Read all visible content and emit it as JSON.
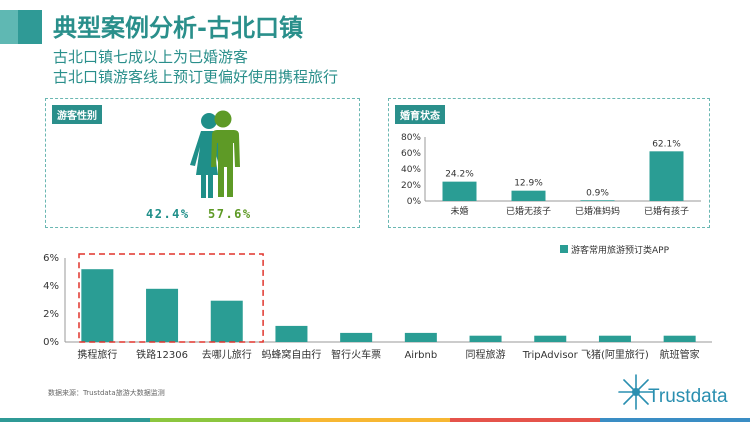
{
  "header": {
    "title": "典型案例分析-古北口镇",
    "subtitle_1": "古北口镇七成以上为已婚游客",
    "subtitle_2": "古北口镇游客线上预订更偏好使用携程旅行"
  },
  "gender_panel": {
    "tag": "游客性别",
    "female_pct": "42.4%",
    "male_pct": "57.6%",
    "female_color": "#1f8f89",
    "male_color": "#5e9a26"
  },
  "marriage_panel": {
    "tag": "婚育状态"
  },
  "source_note": "数据来源：Trustdata旅游大数据监测",
  "logo": {
    "text": "Trustdata"
  },
  "chart_data": [
    {
      "type": "bar",
      "title": "",
      "categories": [
        "未婚",
        "已婚无孩子",
        "已婚准妈妈",
        "已婚有孩子"
      ],
      "values": [
        24.2,
        12.9,
        0.9,
        62.1
      ],
      "data_labels": [
        "24.2%",
        "12.9%",
        "0.9%",
        "62.1%"
      ],
      "ylim": [
        0,
        80
      ],
      "yticks": [
        "0%",
        "20%",
        "40%",
        "60%",
        "80%"
      ],
      "color": "#2a9d94",
      "grid": false
    },
    {
      "type": "bar",
      "title": "",
      "legend": "游客常用旅游预订类APP",
      "legend_position": "top-right",
      "categories": [
        "携程旅行",
        "铁路12306",
        "去哪儿旅行",
        "蚂蜂窝自由行",
        "智行火车票",
        "Airbnb",
        "同程旅游",
        "TripAdvisor",
        "飞猪(阿里旅行)",
        "航班管家"
      ],
      "values": [
        5.2,
        3.8,
        2.95,
        1.15,
        0.65,
        0.65,
        0.45,
        0.45,
        0.45,
        0.45
      ],
      "ylim": [
        0,
        6
      ],
      "yticks": [
        "0%",
        "2%",
        "4%",
        "6%"
      ],
      "highlighted": [
        "携程旅行",
        "铁路12306",
        "去哪儿旅行"
      ],
      "color": "#2a9d94",
      "grid": false
    }
  ]
}
